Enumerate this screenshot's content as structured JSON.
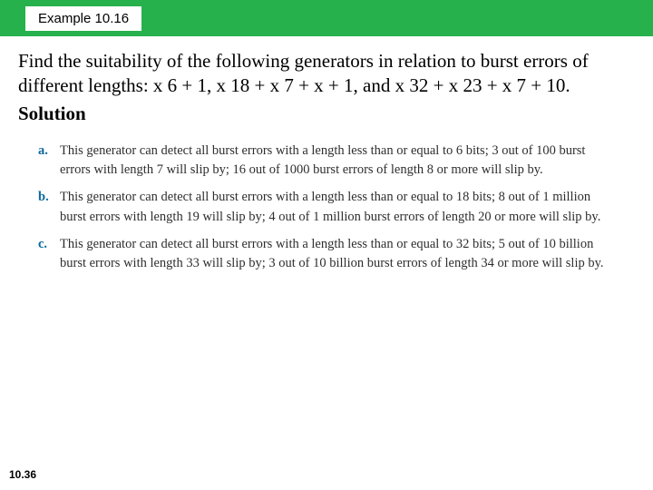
{
  "header": {
    "example_label": "Example 10.16",
    "bar_color": "#26b14c",
    "box_bg": "#ffffff"
  },
  "question": {
    "text": "Find the suitability of the following generators in relation to burst errors of different lengths: x 6 + 1,  x 18 + x 7 + x + 1, and x 32 + x 23 + x 7 + 10.",
    "fontsize": 21,
    "color": "#000000"
  },
  "solution_label": "Solution",
  "answers": [
    {
      "letter": "a.",
      "text": "This generator can detect all burst errors with a length less than or equal to 6 bits; 3 out of 100 burst errors with length 7 will slip by; 16 out of 1000 burst errors of length 8 or more will slip by."
    },
    {
      "letter": "b.",
      "text": "This generator can detect all burst errors with a length less than or equal to 18 bits; 8 out of 1 million burst errors with length 19 will slip by; 4 out of 1 million burst errors of length 20 or more will slip by."
    },
    {
      "letter": "c.",
      "text": "This generator can detect all burst errors with a length less than or equal to 32 bits; 5 out of 10 billion burst errors with length 33 will slip by; 3 out of 10 billion burst errors of length 34 or more will slip by."
    }
  ],
  "answer_style": {
    "letter_color": "#0a6a9e",
    "text_color": "#2e2e2e",
    "fontsize": 14.5
  },
  "page_number": "10.36"
}
